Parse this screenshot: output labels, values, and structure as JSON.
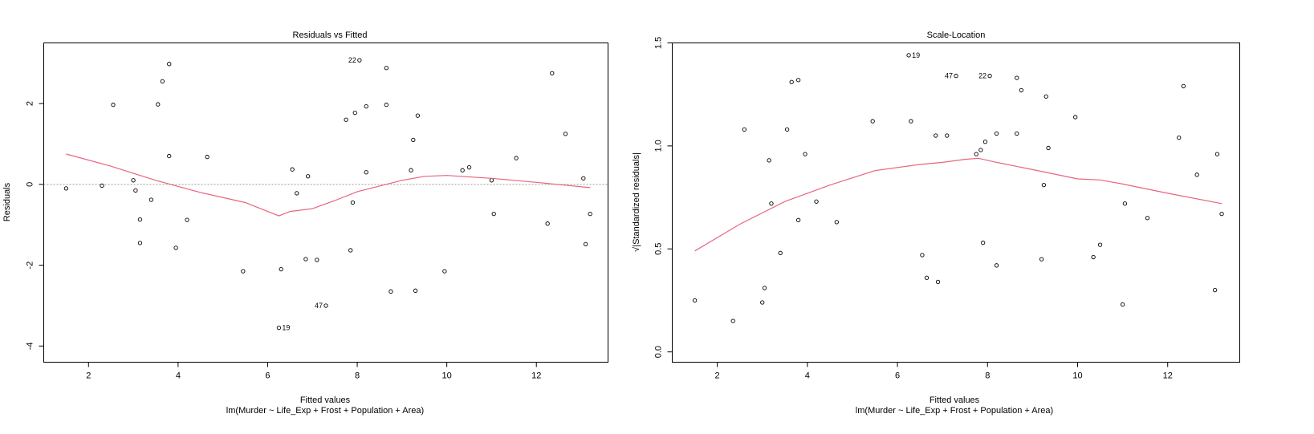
{
  "chart_data": [
    {
      "type": "scatter",
      "title": "Residuals vs Fitted",
      "xlabel": "Fitted values",
      "subtitle": "lm(Murder ~ Life_Exp + Frost + Population + Area)",
      "ylabel": "Residuals",
      "xlim": [
        1.0,
        13.6
      ],
      "ylim": [
        -4.4,
        3.5
      ],
      "xticks": [
        2,
        4,
        6,
        8,
        10,
        12
      ],
      "yticks": [
        -4,
        -2,
        0,
        2
      ],
      "refline_y": 0,
      "points": [
        [
          1.5,
          -0.1
        ],
        [
          2.3,
          -0.03
        ],
        [
          2.55,
          1.97
        ],
        [
          3.0,
          0.1
        ],
        [
          3.05,
          -0.15
        ],
        [
          3.15,
          -0.87
        ],
        [
          3.15,
          -1.45
        ],
        [
          3.4,
          -0.38
        ],
        [
          3.55,
          1.98
        ],
        [
          3.65,
          2.55
        ],
        [
          3.8,
          2.98
        ],
        [
          3.8,
          0.7
        ],
        [
          3.95,
          -1.57
        ],
        [
          4.2,
          -0.88
        ],
        [
          4.65,
          0.68
        ],
        [
          5.45,
          -2.15
        ],
        [
          6.25,
          -3.55
        ],
        [
          6.3,
          -2.1
        ],
        [
          6.55,
          0.37
        ],
        [
          6.65,
          -0.22
        ],
        [
          6.85,
          -1.85
        ],
        [
          6.9,
          0.2
        ],
        [
          7.1,
          -1.87
        ],
        [
          7.3,
          -3.0
        ],
        [
          7.75,
          1.6
        ],
        [
          7.85,
          -1.63
        ],
        [
          7.9,
          -0.45
        ],
        [
          7.95,
          1.77
        ],
        [
          8.05,
          3.07
        ],
        [
          8.2,
          1.93
        ],
        [
          8.2,
          0.3
        ],
        [
          8.65,
          2.88
        ],
        [
          8.65,
          1.97
        ],
        [
          8.75,
          -2.65
        ],
        [
          9.2,
          0.35
        ],
        [
          9.25,
          1.1
        ],
        [
          9.3,
          -2.63
        ],
        [
          9.35,
          1.7
        ],
        [
          9.95,
          -2.15
        ],
        [
          10.35,
          0.35
        ],
        [
          10.5,
          0.42
        ],
        [
          11.0,
          0.1
        ],
        [
          11.05,
          -0.73
        ],
        [
          11.55,
          0.65
        ],
        [
          12.25,
          -0.97
        ],
        [
          12.35,
          2.75
        ],
        [
          12.65,
          1.25
        ],
        [
          13.05,
          0.15
        ],
        [
          13.1,
          -1.48
        ],
        [
          13.2,
          -0.73
        ]
      ],
      "labeled_points": [
        {
          "label": "22",
          "x": 8.05,
          "y": 3.07,
          "side": "left"
        },
        {
          "label": "47",
          "x": 7.3,
          "y": -3.0,
          "side": "left"
        },
        {
          "label": "19",
          "x": 6.25,
          "y": -3.55,
          "side": "right"
        }
      ],
      "smooth": [
        [
          1.5,
          0.75
        ],
        [
          2.5,
          0.45
        ],
        [
          3.5,
          0.1
        ],
        [
          4.5,
          -0.2
        ],
        [
          5.5,
          -0.45
        ],
        [
          6.25,
          -0.78
        ],
        [
          6.5,
          -0.67
        ],
        [
          7.0,
          -0.6
        ],
        [
          7.5,
          -0.4
        ],
        [
          8.0,
          -0.18
        ],
        [
          9.0,
          0.1
        ],
        [
          9.5,
          0.2
        ],
        [
          10.0,
          0.22
        ],
        [
          11.0,
          0.15
        ],
        [
          12.0,
          0.05
        ],
        [
          13.2,
          -0.08
        ]
      ]
    },
    {
      "type": "scatter",
      "title": "Scale-Location",
      "xlabel": "Fitted values",
      "subtitle": "lm(Murder ~ Life_Exp + Frost + Population + Area)",
      "ylabel": "√|Standardized residuals|",
      "xlim": [
        1.0,
        13.6
      ],
      "ylim": [
        -0.05,
        1.5
      ],
      "xticks": [
        2,
        4,
        6,
        8,
        10,
        12
      ],
      "yticks": [
        0.0,
        0.5,
        1.0,
        1.5
      ],
      "ytick_labels": [
        "0.0",
        "0.5",
        "1.0",
        "1.5"
      ],
      "points": [
        [
          1.5,
          0.25
        ],
        [
          2.35,
          0.15
        ],
        [
          2.6,
          1.08
        ],
        [
          3.0,
          0.24
        ],
        [
          3.05,
          0.31
        ],
        [
          3.15,
          0.93
        ],
        [
          3.2,
          0.72
        ],
        [
          3.4,
          0.48
        ],
        [
          3.55,
          1.08
        ],
        [
          3.65,
          1.31
        ],
        [
          3.8,
          1.32
        ],
        [
          3.8,
          0.64
        ],
        [
          3.95,
          0.96
        ],
        [
          4.2,
          0.73
        ],
        [
          4.65,
          0.63
        ],
        [
          5.45,
          1.12
        ],
        [
          6.25,
          1.44
        ],
        [
          6.3,
          1.12
        ],
        [
          6.55,
          0.47
        ],
        [
          6.65,
          0.36
        ],
        [
          6.85,
          1.05
        ],
        [
          6.9,
          0.34
        ],
        [
          7.1,
          1.05
        ],
        [
          7.3,
          1.34
        ],
        [
          7.75,
          0.96
        ],
        [
          7.85,
          0.98
        ],
        [
          7.9,
          0.53
        ],
        [
          7.95,
          1.02
        ],
        [
          8.05,
          1.34
        ],
        [
          8.2,
          1.06
        ],
        [
          8.2,
          0.42
        ],
        [
          8.65,
          1.33
        ],
        [
          8.65,
          1.06
        ],
        [
          8.75,
          1.27
        ],
        [
          9.2,
          0.45
        ],
        [
          9.25,
          0.81
        ],
        [
          9.3,
          1.24
        ],
        [
          9.35,
          0.99
        ],
        [
          9.95,
          1.14
        ],
        [
          10.35,
          0.46
        ],
        [
          10.5,
          0.52
        ],
        [
          11.0,
          0.23
        ],
        [
          11.05,
          0.72
        ],
        [
          11.55,
          0.65
        ],
        [
          12.25,
          1.04
        ],
        [
          12.35,
          1.29
        ],
        [
          12.65,
          0.86
        ],
        [
          13.05,
          0.3
        ],
        [
          13.1,
          0.96
        ],
        [
          13.2,
          0.67
        ]
      ],
      "labeled_points": [
        {
          "label": "19",
          "x": 6.25,
          "y": 1.44,
          "side": "right"
        },
        {
          "label": "47",
          "x": 7.3,
          "y": 1.34,
          "side": "left"
        },
        {
          "label": "22",
          "x": 8.05,
          "y": 1.34,
          "side": "left"
        }
      ],
      "smooth": [
        [
          1.5,
          0.49
        ],
        [
          2.5,
          0.62
        ],
        [
          3.5,
          0.73
        ],
        [
          4.5,
          0.81
        ],
        [
          5.5,
          0.88
        ],
        [
          6.5,
          0.91
        ],
        [
          7.0,
          0.92
        ],
        [
          7.5,
          0.935
        ],
        [
          7.8,
          0.94
        ],
        [
          8.2,
          0.92
        ],
        [
          9.0,
          0.885
        ],
        [
          10.0,
          0.84
        ],
        [
          10.5,
          0.835
        ],
        [
          11.0,
          0.815
        ],
        [
          12.0,
          0.77
        ],
        [
          13.2,
          0.72
        ]
      ]
    }
  ]
}
